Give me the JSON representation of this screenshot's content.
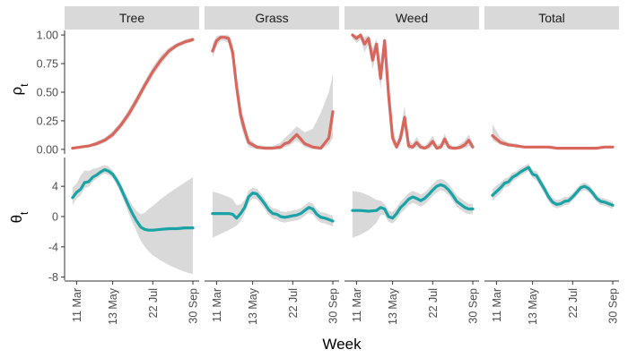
{
  "chart_data": {
    "type": "line",
    "xlabel": "Week",
    "x_ticks": [
      "11 Mar",
      "13 May",
      "22 Jul",
      "30 Sep"
    ],
    "x_range": [
      "2019-03-01",
      "2019-09-30"
    ],
    "facets": [
      "Tree",
      "Grass",
      "Weed",
      "Total"
    ],
    "colors": {
      "rho": "#d9665c",
      "theta": "#1aa3a6",
      "ribbon": "#d9d9d9",
      "strip": "#d9d9d9"
    },
    "rows": [
      {
        "ylabel": "ρ",
        "ylabel_sub": "t",
        "ylim": [
          -0.04,
          1.04
        ],
        "y_ticks": [
          0.0,
          0.25,
          0.5,
          0.75,
          1.0
        ],
        "y_tick_labels": [
          "0.00",
          "0.25",
          "0.50",
          "0.75",
          "1.00"
        ],
        "series": [
          {
            "x": [
              "2019-03-04",
              "2019-03-18",
              "2019-04-01",
              "2019-04-15",
              "2019-04-29",
              "2019-05-13",
              "2019-05-27",
              "2019-06-10",
              "2019-06-24",
              "2019-07-08",
              "2019-07-22",
              "2019-08-05",
              "2019-08-19",
              "2019-09-02",
              "2019-09-16",
              "2019-09-30"
            ],
            "y": [
              0.01,
              0.02,
              0.03,
              0.05,
              0.08,
              0.13,
              0.21,
              0.31,
              0.43,
              0.56,
              0.68,
              0.78,
              0.86,
              0.91,
              0.94,
              0.96
            ],
            "lower": [
              0.0,
              0.01,
              0.02,
              0.03,
              0.06,
              0.1,
              0.18,
              0.27,
              0.39,
              0.52,
              0.64,
              0.74,
              0.83,
              0.89,
              0.92,
              0.94
            ],
            "upper": [
              0.02,
              0.03,
              0.04,
              0.07,
              0.1,
              0.16,
              0.24,
              0.35,
              0.47,
              0.6,
              0.72,
              0.82,
              0.89,
              0.93,
              0.96,
              0.98
            ]
          },
          {
            "x": [
              "2019-03-04",
              "2019-03-11",
              "2019-03-18",
              "2019-03-25",
              "2019-04-01",
              "2019-04-08",
              "2019-04-15",
              "2019-04-22",
              "2019-04-29",
              "2019-05-06",
              "2019-05-20",
              "2019-06-03",
              "2019-06-17",
              "2019-07-01",
              "2019-07-08",
              "2019-07-15",
              "2019-07-29",
              "2019-08-12",
              "2019-08-26",
              "2019-09-09",
              "2019-09-23",
              "2019-09-30"
            ],
            "y": [
              0.86,
              0.95,
              0.98,
              0.98,
              0.97,
              0.85,
              0.55,
              0.3,
              0.17,
              0.06,
              0.02,
              0.01,
              0.01,
              0.02,
              0.05,
              0.06,
              0.13,
              0.05,
              0.02,
              0.01,
              0.1,
              0.33
            ],
            "lower": [
              0.8,
              0.9,
              0.95,
              0.95,
              0.93,
              0.78,
              0.46,
              0.22,
              0.1,
              0.02,
              0.0,
              0.0,
              0.0,
              0.0,
              0.02,
              0.03,
              0.08,
              0.02,
              0.0,
              0.0,
              0.04,
              0.1
            ],
            "upper": [
              0.92,
              0.99,
              1.0,
              1.0,
              1.0,
              0.92,
              0.64,
              0.38,
              0.24,
              0.1,
              0.04,
              0.03,
              0.03,
              0.06,
              0.1,
              0.13,
              0.2,
              0.15,
              0.18,
              0.32,
              0.5,
              0.65
            ]
          },
          {
            "x": [
              "2019-03-04",
              "2019-03-11",
              "2019-03-18",
              "2019-03-25",
              "2019-04-01",
              "2019-04-08",
              "2019-04-15",
              "2019-04-22",
              "2019-04-29",
              "2019-05-06",
              "2019-05-13",
              "2019-05-20",
              "2019-05-27",
              "2019-06-03",
              "2019-06-10",
              "2019-06-17",
              "2019-06-24",
              "2019-07-01",
              "2019-07-08",
              "2019-07-15",
              "2019-07-22",
              "2019-07-29",
              "2019-08-05",
              "2019-08-12",
              "2019-08-19",
              "2019-08-26",
              "2019-09-02",
              "2019-09-09",
              "2019-09-16",
              "2019-09-23",
              "2019-09-30"
            ],
            "y": [
              1.0,
              0.97,
              1.0,
              0.92,
              0.97,
              0.78,
              0.92,
              0.62,
              0.95,
              0.48,
              0.1,
              0.02,
              0.1,
              0.28,
              0.03,
              0.02,
              0.06,
              0.02,
              0.01,
              0.03,
              0.07,
              0.01,
              0.02,
              0.09,
              0.02,
              0.01,
              0.01,
              0.02,
              0.04,
              0.08,
              0.02
            ],
            "lower": [
              0.97,
              0.93,
              0.96,
              0.85,
              0.92,
              0.7,
              0.85,
              0.52,
              0.9,
              0.38,
              0.05,
              0.0,
              0.05,
              0.18,
              0.0,
              0.0,
              0.02,
              0.0,
              0.0,
              0.0,
              0.03,
              0.0,
              0.0,
              0.04,
              0.0,
              0.0,
              0.0,
              0.0,
              0.01,
              0.03,
              0.0
            ],
            "upper": [
              1.0,
              1.0,
              1.0,
              0.98,
              1.0,
              0.88,
              0.97,
              0.74,
              0.99,
              0.6,
              0.18,
              0.06,
              0.17,
              0.38,
              0.08,
              0.05,
              0.11,
              0.05,
              0.03,
              0.07,
              0.12,
              0.04,
              0.05,
              0.14,
              0.05,
              0.03,
              0.03,
              0.05,
              0.08,
              0.13,
              0.05
            ]
          },
          {
            "x": [
              "2019-03-04",
              "2019-03-18",
              "2019-04-01",
              "2019-04-15",
              "2019-04-29",
              "2019-05-13",
              "2019-05-27",
              "2019-06-10",
              "2019-06-24",
              "2019-07-08",
              "2019-07-22",
              "2019-08-05",
              "2019-08-19",
              "2019-09-02",
              "2019-09-16",
              "2019-09-30"
            ],
            "y": [
              0.12,
              0.06,
              0.04,
              0.03,
              0.02,
              0.02,
              0.02,
              0.02,
              0.01,
              0.01,
              0.01,
              0.01,
              0.01,
              0.01,
              0.02,
              0.02
            ],
            "lower": [
              0.08,
              0.04,
              0.02,
              0.02,
              0.01,
              0.01,
              0.01,
              0.01,
              0.0,
              0.0,
              0.0,
              0.0,
              0.0,
              0.0,
              0.01,
              0.01
            ],
            "upper": [
              0.22,
              0.1,
              0.06,
              0.05,
              0.03,
              0.03,
              0.03,
              0.03,
              0.02,
              0.02,
              0.02,
              0.02,
              0.02,
              0.02,
              0.03,
              0.03
            ]
          }
        ]
      },
      {
        "ylabel": "θ",
        "ylabel_sub": "t",
        "ylim": [
          -8.4,
          7.8
        ],
        "y_ticks": [
          -8,
          -4,
          0,
          4
        ],
        "y_tick_labels": [
          "-8",
          "-4",
          "0",
          "4"
        ],
        "series": [
          {
            "x": [
              "2019-03-04",
              "2019-03-11",
              "2019-03-18",
              "2019-03-25",
              "2019-04-01",
              "2019-04-08",
              "2019-04-15",
              "2019-04-22",
              "2019-04-29",
              "2019-05-06",
              "2019-05-13",
              "2019-05-20",
              "2019-05-27",
              "2019-06-03",
              "2019-06-10",
              "2019-06-17",
              "2019-06-24",
              "2019-07-01",
              "2019-07-08",
              "2019-07-15",
              "2019-07-22",
              "2019-08-05",
              "2019-08-19",
              "2019-09-02",
              "2019-09-16",
              "2019-09-30"
            ],
            "y": [
              2.5,
              3.2,
              3.6,
              4.5,
              4.6,
              5.2,
              5.5,
              5.9,
              6.2,
              6.0,
              5.6,
              4.8,
              3.8,
              2.6,
              1.4,
              0.3,
              -0.6,
              -1.4,
              -1.7,
              -1.8,
              -1.8,
              -1.7,
              -1.6,
              -1.6,
              -1.5,
              -1.5
            ],
            "lower": [
              1.5,
              2.4,
              2.8,
              3.8,
              3.9,
              4.6,
              5.0,
              5.4,
              5.7,
              5.5,
              5.1,
              4.2,
              3.1,
              1.8,
              0.4,
              -0.9,
              -2.0,
              -3.2,
              -4.0,
              -4.6,
              -5.1,
              -5.8,
              -6.4,
              -6.9,
              -7.3,
              -7.6
            ],
            "upper": [
              3.8,
              4.4,
              5.4,
              6.1,
              6.0,
              6.3,
              6.4,
              6.6,
              6.8,
              6.6,
              6.1,
              5.3,
              4.4,
              3.3,
              2.3,
              1.4,
              0.7,
              0.3,
              0.5,
              1.0,
              1.4,
              2.3,
              3.1,
              3.8,
              4.5,
              5.2
            ]
          },
          {
            "x": [
              "2019-03-04",
              "2019-03-18",
              "2019-04-01",
              "2019-04-08",
              "2019-04-15",
              "2019-04-22",
              "2019-04-29",
              "2019-05-06",
              "2019-05-13",
              "2019-05-20",
              "2019-05-27",
              "2019-06-03",
              "2019-06-10",
              "2019-06-17",
              "2019-06-24",
              "2019-07-01",
              "2019-07-08",
              "2019-07-15",
              "2019-07-22",
              "2019-07-29",
              "2019-08-05",
              "2019-08-12",
              "2019-08-19",
              "2019-08-26",
              "2019-09-02",
              "2019-09-09",
              "2019-09-16",
              "2019-09-23",
              "2019-09-30"
            ],
            "y": [
              0.4,
              0.4,
              0.4,
              0.3,
              -0.2,
              0.4,
              1.2,
              2.6,
              3.1,
              3.0,
              2.4,
              1.7,
              0.9,
              0.4,
              0.3,
              0.0,
              -0.1,
              0.0,
              0.1,
              0.2,
              0.4,
              0.8,
              1.2,
              1.0,
              0.3,
              -0.1,
              -0.2,
              -0.4,
              -0.6
            ],
            "lower": [
              -2.8,
              -2.3,
              -1.8,
              -1.5,
              -1.2,
              -0.6,
              0.4,
              1.8,
              2.4,
              2.3,
              1.7,
              1.0,
              0.2,
              -0.3,
              -0.4,
              -0.7,
              -0.8,
              -0.7,
              -0.6,
              -0.5,
              -0.3,
              0.1,
              0.5,
              0.3,
              -0.4,
              -0.8,
              -0.9,
              -1.1,
              -1.3
            ],
            "upper": [
              3.3,
              3.0,
              2.6,
              2.3,
              1.5,
              1.6,
              2.2,
              3.4,
              3.8,
              3.7,
              3.1,
              2.4,
              1.6,
              1.1,
              1.0,
              0.7,
              0.6,
              0.7,
              0.8,
              0.9,
              1.1,
              1.5,
              1.9,
              1.7,
              1.0,
              0.6,
              0.5,
              0.3,
              0.1
            ]
          },
          {
            "x": [
              "2019-03-04",
              "2019-03-18",
              "2019-04-01",
              "2019-04-15",
              "2019-04-22",
              "2019-04-29",
              "2019-05-06",
              "2019-05-13",
              "2019-05-20",
              "2019-05-27",
              "2019-06-03",
              "2019-06-10",
              "2019-06-17",
              "2019-06-24",
              "2019-07-01",
              "2019-07-08",
              "2019-07-15",
              "2019-07-22",
              "2019-07-29",
              "2019-08-05",
              "2019-08-12",
              "2019-08-19",
              "2019-08-26",
              "2019-09-02",
              "2019-09-09",
              "2019-09-16",
              "2019-09-23",
              "2019-09-30"
            ],
            "y": [
              0.8,
              0.8,
              0.7,
              0.8,
              1.2,
              1.0,
              0.0,
              -0.2,
              0.4,
              1.2,
              1.7,
              2.3,
              2.6,
              2.4,
              2.1,
              2.4,
              2.9,
              3.5,
              4.0,
              4.2,
              4.0,
              3.5,
              2.8,
              2.0,
              1.6,
              1.2,
              1.0,
              1.0
            ],
            "lower": [
              -2.8,
              -2.4,
              -1.8,
              -0.8,
              0.2,
              0.2,
              -0.7,
              -0.9,
              -0.4,
              0.4,
              0.9,
              1.5,
              1.8,
              1.6,
              1.3,
              1.6,
              2.1,
              2.7,
              3.2,
              3.5,
              3.3,
              2.8,
              2.1,
              1.3,
              0.9,
              0.5,
              0.3,
              0.3
            ],
            "upper": [
              3.4,
              3.2,
              2.8,
              2.2,
              2.1,
              1.7,
              0.8,
              0.6,
              1.2,
              2.0,
              2.5,
              3.1,
              3.4,
              3.2,
              2.9,
              3.2,
              3.7,
              4.3,
              4.8,
              5.0,
              4.8,
              4.3,
              3.6,
              2.8,
              2.4,
              2.0,
              1.7,
              1.7
            ]
          },
          {
            "x": [
              "2019-03-04",
              "2019-03-11",
              "2019-03-18",
              "2019-03-25",
              "2019-04-01",
              "2019-04-08",
              "2019-04-15",
              "2019-04-22",
              "2019-04-29",
              "2019-05-06",
              "2019-05-13",
              "2019-05-20",
              "2019-05-27",
              "2019-06-03",
              "2019-06-10",
              "2019-06-17",
              "2019-06-24",
              "2019-07-01",
              "2019-07-08",
              "2019-07-15",
              "2019-07-22",
              "2019-07-29",
              "2019-08-05",
              "2019-08-12",
              "2019-08-19",
              "2019-08-26",
              "2019-09-02",
              "2019-09-09",
              "2019-09-16",
              "2019-09-23",
              "2019-09-30"
            ],
            "y": [
              2.8,
              3.3,
              3.8,
              4.4,
              4.6,
              5.2,
              5.5,
              5.9,
              6.2,
              6.5,
              5.6,
              5.4,
              4.5,
              3.6,
              2.6,
              1.9,
              1.6,
              1.7,
              2.0,
              2.1,
              2.6,
              3.2,
              3.8,
              4.0,
              3.7,
              3.1,
              2.4,
              2.0,
              1.9,
              1.7,
              1.5
            ],
            "lower": [
              2.1,
              2.6,
              3.1,
              3.8,
              4.0,
              4.6,
              5.0,
              5.4,
              5.7,
              6.0,
              5.1,
              4.8,
              3.9,
              3.0,
              2.0,
              1.4,
              1.1,
              1.2,
              1.5,
              1.6,
              2.1,
              2.7,
              3.3,
              3.5,
              3.2,
              2.6,
              1.9,
              1.5,
              1.4,
              1.2,
              1.0
            ],
            "upper": [
              3.6,
              4.1,
              4.5,
              5.0,
              5.2,
              5.8,
              6.0,
              6.4,
              6.7,
              7.0,
              6.1,
              6.0,
              5.1,
              4.2,
              3.2,
              2.5,
              2.2,
              2.3,
              2.6,
              2.6,
              3.1,
              3.7,
              4.3,
              4.5,
              4.2,
              3.6,
              2.9,
              2.5,
              2.4,
              2.2,
              2.0
            ]
          }
        ]
      }
    ]
  }
}
